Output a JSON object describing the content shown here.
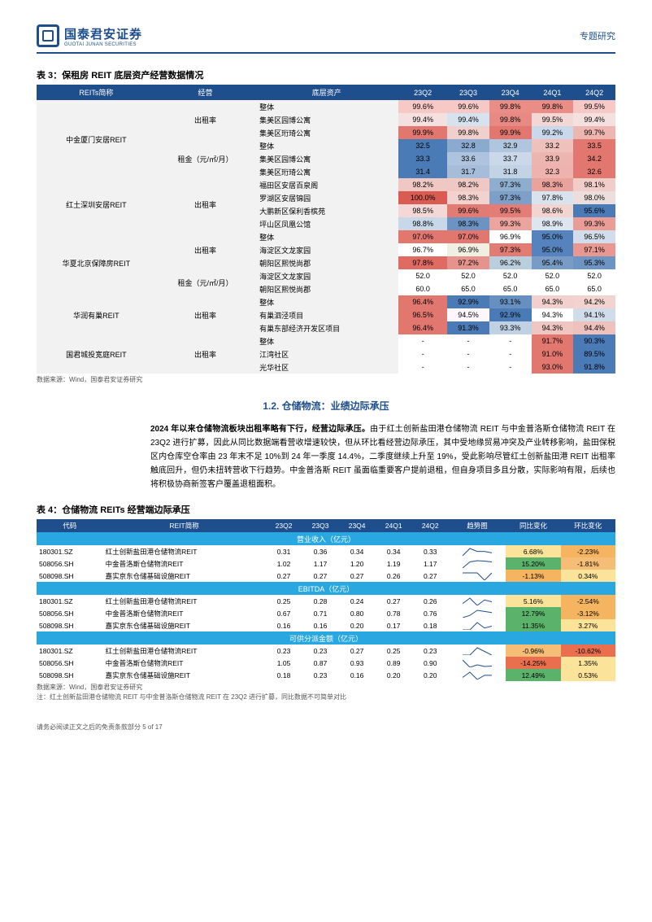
{
  "header": {
    "brand_cn": "国泰君安证券",
    "brand_en": "GUOTAI JUNAN SECURITIES",
    "right": "专题研究"
  },
  "t3": {
    "title": "表 3：保租房 REIT 底层资产经营数据情况",
    "headers": [
      "REITs简称",
      "经营",
      "底层资产",
      "23Q2",
      "23Q3",
      "23Q4",
      "24Q1",
      "24Q2"
    ],
    "groups": [
      {
        "reit": "中金厦门安居REIT",
        "blocks": [
          {
            "metric": "出租率",
            "rows": [
              {
                "asset": "整体",
                "v": [
                  "99.6%",
                  "99.6%",
                  "99.8%",
                  "99.8%",
                  "99.5%"
                ],
                "bg": [
                  "#f6c9c6",
                  "#f6c9c6",
                  "#ea8d86",
                  "#ea8d86",
                  "#f6c9c6"
                ]
              },
              {
                "asset": "集美区园博公寓",
                "v": [
                  "99.4%",
                  "99.4%",
                  "99.8%",
                  "99.5%",
                  "99.4%"
                ],
                "bg": [
                  "#f4e0de",
                  "#d7e2ef",
                  "#e68a83",
                  "#f3d7d4",
                  "#f4e0de"
                ]
              },
              {
                "asset": "集美区珩琦公寓",
                "v": [
                  "99.9%",
                  "99.8%",
                  "99.9%",
                  "99.2%",
                  "99.7%"
                ],
                "bg": [
                  "#e27770",
                  "#f1cfcc",
                  "#e27770",
                  "#c9d8ea",
                  "#eeb6b1"
                ]
              }
            ]
          },
          {
            "metric": "租金（元/㎡/月）",
            "rows": [
              {
                "asset": "整体",
                "v": [
                  "32.5",
                  "32.8",
                  "32.9",
                  "33.2",
                  "33.5"
                ],
                "bg": [
                  "#4a7bb7",
                  "#8aabcf",
                  "#b0c5de",
                  "#eec1bd",
                  "#e27770"
                ]
              },
              {
                "asset": "集美区园博公寓",
                "v": [
                  "33.3",
                  "33.6",
                  "33.7",
                  "33.9",
                  "34.2"
                ],
                "bg": [
                  "#4a7bb7",
                  "#aec3dd",
                  "#cad8e9",
                  "#edb5b0",
                  "#e27770"
                ]
              },
              {
                "asset": "集美区珩琦公寓",
                "v": [
                  "31.4",
                  "31.7",
                  "31.8",
                  "32.3",
                  "32.6"
                ],
                "bg": [
                  "#4a7bb7",
                  "#a6bdd9",
                  "#c3d3e6",
                  "#eeb3ae",
                  "#e27770"
                ]
              }
            ]
          }
        ]
      },
      {
        "reit": "红土深圳安居REIT",
        "blocks": [
          {
            "metric": "出租率",
            "rows": [
              {
                "asset": "福田区安居百泉阁",
                "v": [
                  "98.2%",
                  "98.2%",
                  "97.3%",
                  "98.3%",
                  "98.1%"
                ],
                "bg": [
                  "#efc8c4",
                  "#efc8c4",
                  "#8fadcf",
                  "#e9a29c",
                  "#f0cdc9"
                ]
              },
              {
                "asset": "罗湖区安居锦园",
                "v": [
                  "100.0%",
                  "98.3%",
                  "97.3%",
                  "97.8%",
                  "98.0%"
                ],
                "bg": [
                  "#d95b52",
                  "#f2d2cf",
                  "#7ea0c8",
                  "#d8e3ee",
                  "#ebdedc"
                ]
              },
              {
                "asset": "大鹏新区保利香槟苑",
                "v": [
                  "98.5%",
                  "99.6%",
                  "99.5%",
                  "98.6%",
                  "95.6%"
                ],
                "bg": [
                  "#f3d8d5",
                  "#e27b73",
                  "#e27e77",
                  "#f2d4d1",
                  "#4a7bb7"
                ]
              },
              {
                "asset": "坪山区凤凰公馆",
                "v": [
                  "98.8%",
                  "98.3%",
                  "99.3%",
                  "98.9%",
                  "99.3%"
                ],
                "bg": [
                  "#c9d8e9",
                  "#6c93c2",
                  "#eba49e",
                  "#dde6f0",
                  "#e99d96"
                ]
              }
            ]
          }
        ]
      },
      {
        "reit": "华夏北京保障房REIT",
        "blocks": [
          {
            "metric": "出租率",
            "rows": [
              {
                "asset": "整体",
                "v": [
                  "97.0%",
                  "97.0%",
                  "96.9%",
                  "95.0%",
                  "96.5%"
                ],
                "bg": [
                  "#e27770",
                  "#e27770",
                  "#e7898",
                  "#5683bd",
                  "#d2ddeb"
                ]
              },
              {
                "asset": "海淀区文龙家园",
                "v": [
                  "96.7%",
                  "96.9%",
                  "97.3%",
                  "95.0%",
                  "97.1%"
                ],
                "bg": [
                  "#e4ded",
                  "#eedd",
                  "#e27b73",
                  "#5683bd",
                  "#e89791"
                ]
              },
              {
                "asset": "朝阳区熙悦尚郡",
                "v": [
                  "97.8%",
                  "97.2%",
                  "96.2%",
                  "95.4%",
                  "95.3%"
                ],
                "bg": [
                  "#e06b63",
                  "#e6938d",
                  "#bacfde",
                  "#789cc6",
                  "#6d94c2"
                ]
              }
            ]
          },
          {
            "metric": "租金（元/㎡/月）",
            "rows": [
              {
                "asset": "海淀区文龙家园",
                "v": [
                  "52.0",
                  "52.0",
                  "52.0",
                  "52.0",
                  "52.0"
                ],
                "bg": [
                  "",
                  "",
                  "",
                  "",
                  ""
                ]
              },
              {
                "asset": "朝阳区熙悦尚郡",
                "v": [
                  "60.0",
                  "65.0",
                  "65.0",
                  "65.0",
                  "65.0"
                ],
                "bg": [
                  "",
                  "",
                  "",
                  "",
                  ""
                ]
              }
            ]
          }
        ]
      },
      {
        "reit": "华润有巢REIT",
        "blocks": [
          {
            "metric": "出租率",
            "rows": [
              {
                "asset": "整体",
                "v": [
                  "96.4%",
                  "92.9%",
                  "93.1%",
                  "94.3%",
                  "94.2%"
                ],
                "bg": [
                  "#e27770",
                  "#4a7bb7",
                  "#6690c0",
                  "#f1d0cd",
                  "#f2d3d0"
                ]
              },
              {
                "asset": "有巢泗泾项目",
                "v": [
                  "96.5%",
                  "94.5%",
                  "92.9%",
                  "94.3%",
                  "94.1%"
                ],
                "bg": [
                  "#e27770",
                  "#e9e1",
                  "#4a7bb7",
                  "#e2ded",
                  "#d0dce9"
                ]
              },
              {
                "asset": "有巢东部经济开发区项目",
                "v": [
                  "96.4%",
                  "91.3%",
                  "93.3%",
                  "94.3%",
                  "94.4%"
                ],
                "bg": [
                  "#e27770",
                  "#4a7bb7",
                  "#c0d1e3",
                  "#efc6c2",
                  "#eec1bd"
                ]
              }
            ]
          }
        ]
      },
      {
        "reit": "国君城投宽庭REIT",
        "blocks": [
          {
            "metric": "出租率",
            "rows": [
              {
                "asset": "整体",
                "v": [
                  "-",
                  "-",
                  "-",
                  "91.7%",
                  "90.3%"
                ],
                "bg": [
                  "",
                  "",
                  "",
                  "#e27770",
                  "#4a7bb7"
                ]
              },
              {
                "asset": "江湾社区",
                "v": [
                  "-",
                  "-",
                  "-",
                  "91.0%",
                  "89.5%"
                ],
                "bg": [
                  "",
                  "",
                  "",
                  "#e27770",
                  "#4a7bb7"
                ]
              },
              {
                "asset": "光华社区",
                "v": [
                  "-",
                  "-",
                  "-",
                  "93.0%",
                  "91.8%"
                ],
                "bg": [
                  "",
                  "",
                  "",
                  "#e27770",
                  "#4a7bb7"
                ]
              }
            ]
          }
        ]
      }
    ],
    "source": "数据来源：Wind，国泰君安证券研究"
  },
  "section": {
    "num": "1.2.",
    "title": "仓储物流：业绩边际承压"
  },
  "para": {
    "lead": "2024 年以来仓储物流板块出租率略有下行，经营边际承压。",
    "body": "由于红土创新盐田港仓储物流 REIT 与中金普洛斯仓储物流 REIT 在 23Q2 进行扩募，因此从同比数据端看营收增速较快，但从环比看经营边际承压，其中受地缘贸易冲突及产业转移影响，盐田保税区内仓库空仓率由 23 年末不足 10%到 24 年一季度 14.4%，二季度继续上升至 19%，受此影响尽管红土创新盐田港 REIT 出租率触底回升，但仍未扭转营收下行趋势。中金普洛斯 REIT 虽面临重要客户提前退租，但自身项目多且分散，实际影响有限，后续也将积极协商新签客户覆盖退租面积。"
  },
  "t4": {
    "title": "表 4：仓储物流 REITs 经营端边际承压",
    "headers": [
      "代码",
      "REIT简称",
      "23Q2",
      "23Q3",
      "23Q4",
      "24Q1",
      "24Q2",
      "趋势图",
      "同比变化",
      "环比变化"
    ],
    "sections": [
      {
        "name": "营业收入（亿元）",
        "rows": [
          {
            "code": "180301.SZ",
            "name": "红土创新盐田港仓储物流REIT",
            "v": [
              "0.31",
              "0.36",
              "0.34",
              "0.34",
              "0.33"
            ],
            "yoy": {
              "t": "6.68%",
              "bg": "#fbe49a"
            },
            "qoq": {
              "t": "-2.23%",
              "bg": "#f4b460"
            }
          },
          {
            "code": "508056.SH",
            "name": "中金普洛斯仓储物流REIT",
            "v": [
              "1.02",
              "1.17",
              "1.20",
              "1.19",
              "1.17"
            ],
            "yoy": {
              "t": "15.20%",
              "bg": "#5bb26a"
            },
            "qoq": {
              "t": "-1.81%",
              "bg": "#f5bd75"
            }
          },
          {
            "code": "508098.SH",
            "name": "嘉实京东仓储基础设施REIT",
            "v": [
              "0.27",
              "0.27",
              "0.27",
              "0.26",
              "0.27"
            ],
            "yoy": {
              "t": "-1.13%",
              "bg": "#f4b460"
            },
            "qoq": {
              "t": "0.34%",
              "bg": "#fbe49a"
            }
          }
        ]
      },
      {
        "name": "EBITDA（亿元）",
        "rows": [
          {
            "code": "180301.SZ",
            "name": "红土创新盐田港仓储物流REIT",
            "v": [
              "0.25",
              "0.28",
              "0.24",
              "0.27",
              "0.26"
            ],
            "yoy": {
              "t": "5.16%",
              "bg": "#fbe49a"
            },
            "qoq": {
              "t": "-2.54%",
              "bg": "#f4b460"
            }
          },
          {
            "code": "508056.SH",
            "name": "中金普洛斯仓储物流REIT",
            "v": [
              "0.67",
              "0.71",
              "0.80",
              "0.78",
              "0.76"
            ],
            "yoy": {
              "t": "12.79%",
              "bg": "#5bb26a"
            },
            "qoq": {
              "t": "-3.12%",
              "bg": "#f4b460"
            }
          },
          {
            "code": "508098.SH",
            "name": "嘉实京东仓储基础设施REIT",
            "v": [
              "0.16",
              "0.16",
              "0.20",
              "0.17",
              "0.18"
            ],
            "yoy": {
              "t": "11.35%",
              "bg": "#5bb26a"
            },
            "qoq": {
              "t": "3.27%",
              "bg": "#fbe49a"
            }
          }
        ]
      },
      {
        "name": "可供分派金额（亿元）",
        "rows": [
          {
            "code": "180301.SZ",
            "name": "红土创新盐田港仓储物流REIT",
            "v": [
              "0.23",
              "0.23",
              "0.27",
              "0.25",
              "0.23"
            ],
            "yoy": {
              "t": "-0.96%",
              "bg": "#f5bd75"
            },
            "qoq": {
              "t": "-10.62%",
              "bg": "#e96f4e"
            }
          },
          {
            "code": "508056.SH",
            "name": "中金普洛斯仓储物流REIT",
            "v": [
              "1.05",
              "0.87",
              "0.93",
              "0.89",
              "0.90"
            ],
            "yoy": {
              "t": "-14.25%",
              "bg": "#e96f4e"
            },
            "qoq": {
              "t": "1.35%",
              "bg": "#fbe49a"
            }
          },
          {
            "code": "508098.SH",
            "name": "嘉实京东仓储基础设施REIT",
            "v": [
              "0.18",
              "0.23",
              "0.16",
              "0.20",
              "0.20"
            ],
            "yoy": {
              "t": "12.49%",
              "bg": "#5bb26a"
            },
            "qoq": {
              "t": "0.53%",
              "bg": "#fbe49a"
            }
          }
        ]
      }
    ],
    "source": "数据来源：Wind，国泰君安证券研究",
    "note": "注：红土创新盐田港仓储物流 REIT 与中金普洛斯仓储物流 REIT 在 23Q2 进行扩募，同比数据不可简单对比"
  },
  "footer": "请务必阅读正文之后的免责条款部分  5 of 17"
}
